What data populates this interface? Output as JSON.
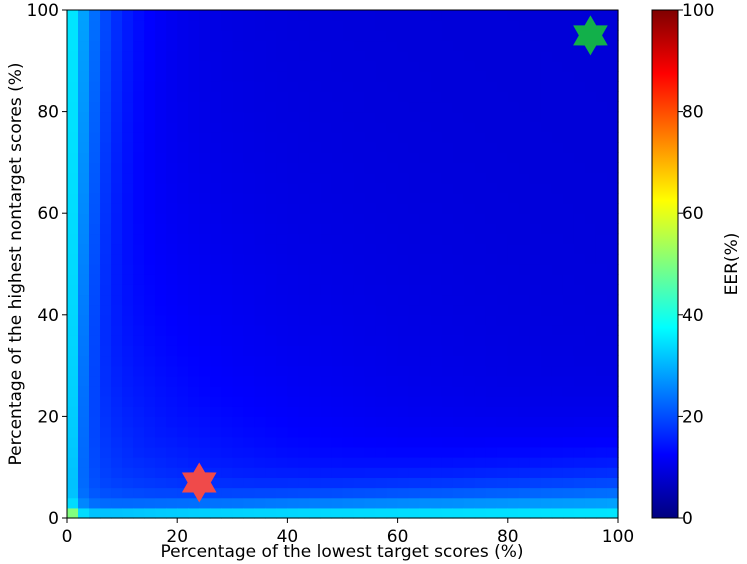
{
  "chart_data": {
    "type": "heatmap",
    "title": "",
    "xlabel": "Percentage of the lowest target scores (%)",
    "ylabel": "Percentage of the highest nontarget scores (%)",
    "xlim": [
      0,
      100
    ],
    "ylim": [
      0,
      100
    ],
    "xticks": [
      "0",
      "20",
      "40",
      "60",
      "80",
      "100"
    ],
    "yticks": [
      "0",
      "20",
      "40",
      "60",
      "80",
      "100"
    ],
    "grid": false,
    "colormap": "jet",
    "colorbar": {
      "label": "EER(%)",
      "range": [
        0,
        100
      ],
      "ticks": [
        "0",
        "20",
        "40",
        "60",
        "80",
        "100"
      ]
    },
    "grid_size": 50,
    "cell_step": 2,
    "value_model": "approximate EER surface: ~100% at (0,0), ~35% along axes, ~8% in upper-right region",
    "markers": [
      {
        "shape": "six-pointed-star",
        "x": 24,
        "y": 7,
        "color": "#f04a4a"
      },
      {
        "shape": "six-pointed-star",
        "x": 95,
        "y": 95,
        "color": "#12b04a"
      }
    ]
  }
}
